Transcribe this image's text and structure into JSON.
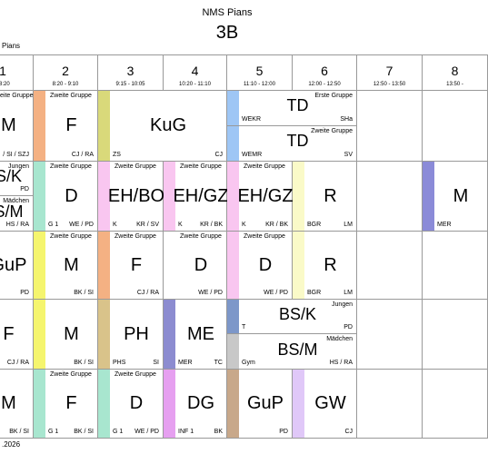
{
  "header": {
    "school": "NMS Pians",
    "class": "3B",
    "corner": "Pians"
  },
  "periods": [
    {
      "number": "1",
      "time": "- 8:20"
    },
    {
      "number": "2",
      "time": "8:20 - 9:10"
    },
    {
      "number": "3",
      "time": "9:15 - 10:05"
    },
    {
      "number": "4",
      "time": "10:20 - 11:10"
    },
    {
      "number": "5",
      "time": "11:10 - 12:00"
    },
    {
      "number": "6",
      "time": "12:00 - 12:50"
    },
    {
      "number": "7",
      "time": "12:50 - 13:50"
    },
    {
      "number": "8",
      "time": "13:50 -"
    }
  ],
  "days": [
    [
      {
        "col": 0,
        "span": 1,
        "parts": [
          {
            "note": "eite Gruppe",
            "subject": "M",
            "right": "/ SI / SZJ"
          }
        ]
      },
      {
        "col": 1,
        "span": 1,
        "parts": [
          {
            "color": "#f4b183",
            "note": "Zweite Gruppe",
            "subject": "F",
            "right": "CJ / RA"
          }
        ]
      },
      {
        "col": 2,
        "span": 2,
        "parts": [
          {
            "color": "#d9d97a",
            "subject": "KuG",
            "left": "ZS",
            "right": "CJ"
          }
        ]
      },
      {
        "col": 4,
        "span": 2,
        "parts": [
          {
            "color": "#9ec6f5",
            "note": "Erste Gruppe",
            "subject": "TD",
            "left": "WEKR",
            "right": "SHa"
          },
          {
            "color": "#9ec6f5",
            "note": "Zweite Gruppe",
            "subject": "TD",
            "left": "WEMR",
            "right": "SV"
          }
        ]
      }
    ],
    [
      {
        "col": 0,
        "span": 1,
        "parts": [
          {
            "note": "Jungen",
            "subject": "S/K",
            "right": "PD"
          },
          {
            "note": "Mädchen",
            "subject": "S/M",
            "right": "HS / RA"
          }
        ]
      },
      {
        "col": 1,
        "span": 1,
        "parts": [
          {
            "color": "#a8e6cf",
            "note": "Zweite Gruppe",
            "subject": "D",
            "left": "G 1",
            "right": "WE / PD"
          }
        ]
      },
      {
        "col": 2,
        "span": 1,
        "parts": [
          {
            "color": "#f9c6f0",
            "note": "Zweite Gruppe",
            "subject": "EH/BO",
            "left": "K",
            "right": "KR / SV"
          }
        ]
      },
      {
        "col": 3,
        "span": 1,
        "parts": [
          {
            "color": "#f9c6f0",
            "note": "Zweite Gruppe",
            "subject": "EH/GZ",
            "left": "K",
            "right": "KR / BK"
          }
        ]
      },
      {
        "col": 4,
        "span": 1,
        "parts": [
          {
            "color": "#f9c6f0",
            "note": "Zweite Gruppe",
            "subject": "EH/GZ",
            "left": "K",
            "right": "KR / BK"
          }
        ]
      },
      {
        "col": 5,
        "span": 1,
        "parts": [
          {
            "color": "#fafac8",
            "subject": "R",
            "left": "BGR",
            "right": "LM"
          }
        ]
      },
      {
        "col": 7,
        "span": 1,
        "parts": [
          {
            "color": "#8b8bd8",
            "subject": "M",
            "left": "MER"
          }
        ]
      }
    ],
    [
      {
        "col": 0,
        "span": 1,
        "parts": [
          {
            "subject": "GuP",
            "right": "PD"
          }
        ]
      },
      {
        "col": 1,
        "span": 1,
        "parts": [
          {
            "color": "#f5f56e",
            "note": "Zweite Gruppe",
            "subject": "M",
            "right": "BK / SI"
          }
        ]
      },
      {
        "col": 2,
        "span": 1,
        "parts": [
          {
            "color": "#f4b183",
            "note": "Zweite Gruppe",
            "subject": "F",
            "right": "CJ / RA"
          }
        ]
      },
      {
        "col": 3,
        "span": 1,
        "parts": [
          {
            "note": "Zweite Gruppe",
            "subject": "D",
            "right": "WE / PD"
          }
        ]
      },
      {
        "col": 4,
        "span": 1,
        "parts": [
          {
            "color": "#f9c6f0",
            "note": "Zweite Gruppe",
            "subject": "D",
            "right": "WE / PD"
          }
        ]
      },
      {
        "col": 5,
        "span": 1,
        "parts": [
          {
            "color": "#fafac8",
            "subject": "R",
            "left": "BGR",
            "right": "LM"
          }
        ]
      }
    ],
    [
      {
        "col": 0,
        "span": 1,
        "parts": [
          {
            "subject": "F",
            "right": "CJ / RA"
          }
        ]
      },
      {
        "col": 1,
        "span": 1,
        "parts": [
          {
            "color": "#f5f56e",
            "subject": "M",
            "right": "BK / SI"
          }
        ]
      },
      {
        "col": 2,
        "span": 1,
        "parts": [
          {
            "color": "#d9c38a",
            "subject": "PH",
            "left": "PHS",
            "right": "SI"
          }
        ]
      },
      {
        "col": 3,
        "span": 1,
        "parts": [
          {
            "color": "#8c8cd0",
            "subject": "ME",
            "left": "MER",
            "right": "TC"
          }
        ]
      },
      {
        "col": 4,
        "span": 2,
        "parts": [
          {
            "color": "#7d97c9",
            "note": "Jungen",
            "subject": "BS/K",
            "left": "T",
            "right": "PD"
          },
          {
            "color": "#c8c8c8",
            "note": "Mädchen",
            "subject": "BS/M",
            "left": "Gym",
            "right": "HS / RA"
          }
        ]
      }
    ],
    [
      {
        "col": 0,
        "span": 1,
        "parts": [
          {
            "subject": "M",
            "right": "BK / SI"
          }
        ]
      },
      {
        "col": 1,
        "span": 1,
        "parts": [
          {
            "color": "#a8e6cf",
            "note": "Zweite Gruppe",
            "subject": "F",
            "left": "G 1",
            "right": "BK / SI"
          }
        ]
      },
      {
        "col": 2,
        "span": 1,
        "parts": [
          {
            "color": "#a8e6cf",
            "note": "Zweite Gruppe",
            "subject": "D",
            "left": "G 1",
            "right": "WE / PD"
          }
        ]
      },
      {
        "col": 3,
        "span": 1,
        "parts": [
          {
            "color": "#e6a0f0",
            "subject": "DG",
            "left": "INF 1",
            "right": "BK"
          }
        ]
      },
      {
        "col": 4,
        "span": 1,
        "parts": [
          {
            "color": "#c8a88a",
            "subject": "GuP",
            "right": "PD"
          }
        ]
      },
      {
        "col": 5,
        "span": 1,
        "parts": [
          {
            "color": "#e0c8f8",
            "subject": "GW",
            "right": "CJ"
          }
        ]
      }
    ]
  ],
  "footer": ".2026"
}
